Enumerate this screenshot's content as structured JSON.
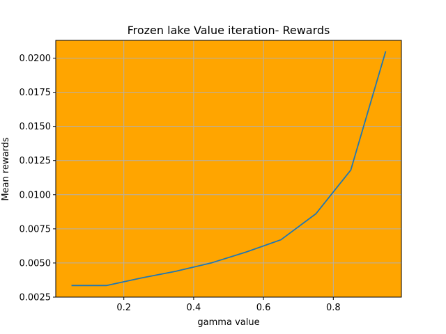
{
  "chart_data": {
    "type": "line",
    "title": "Frozen lake Value iteration- Rewards",
    "xlabel": "gamma value",
    "ylabel": "Mean rewards",
    "xlim": [
      0.005,
      0.995
    ],
    "ylim": [
      0.0025,
      0.0213
    ],
    "xticks": [
      0.2,
      0.4,
      0.6,
      0.8
    ],
    "xtick_labels": [
      "0.2",
      "0.4",
      "0.6",
      "0.8"
    ],
    "yticks": [
      0.0025,
      0.005,
      0.0075,
      0.01,
      0.0125,
      0.015,
      0.0175,
      0.02
    ],
    "ytick_labels": [
      "0.0025",
      "0.0050",
      "0.0075",
      "0.0100",
      "0.0125",
      "0.0150",
      "0.0175",
      "0.0200"
    ],
    "grid": true,
    "background_color": "#ffa500",
    "line_color": "#1f77b4",
    "grid_color": "#b0b0b0",
    "series": [
      {
        "x": [
          0.05,
          0.15,
          0.25,
          0.35,
          0.45,
          0.55,
          0.65,
          0.75,
          0.85,
          0.95
        ],
        "values": [
          0.00335,
          0.00335,
          0.0039,
          0.0044,
          0.005,
          0.0058,
          0.0067,
          0.0086,
          0.0118,
          0.0205
        ]
      }
    ]
  }
}
